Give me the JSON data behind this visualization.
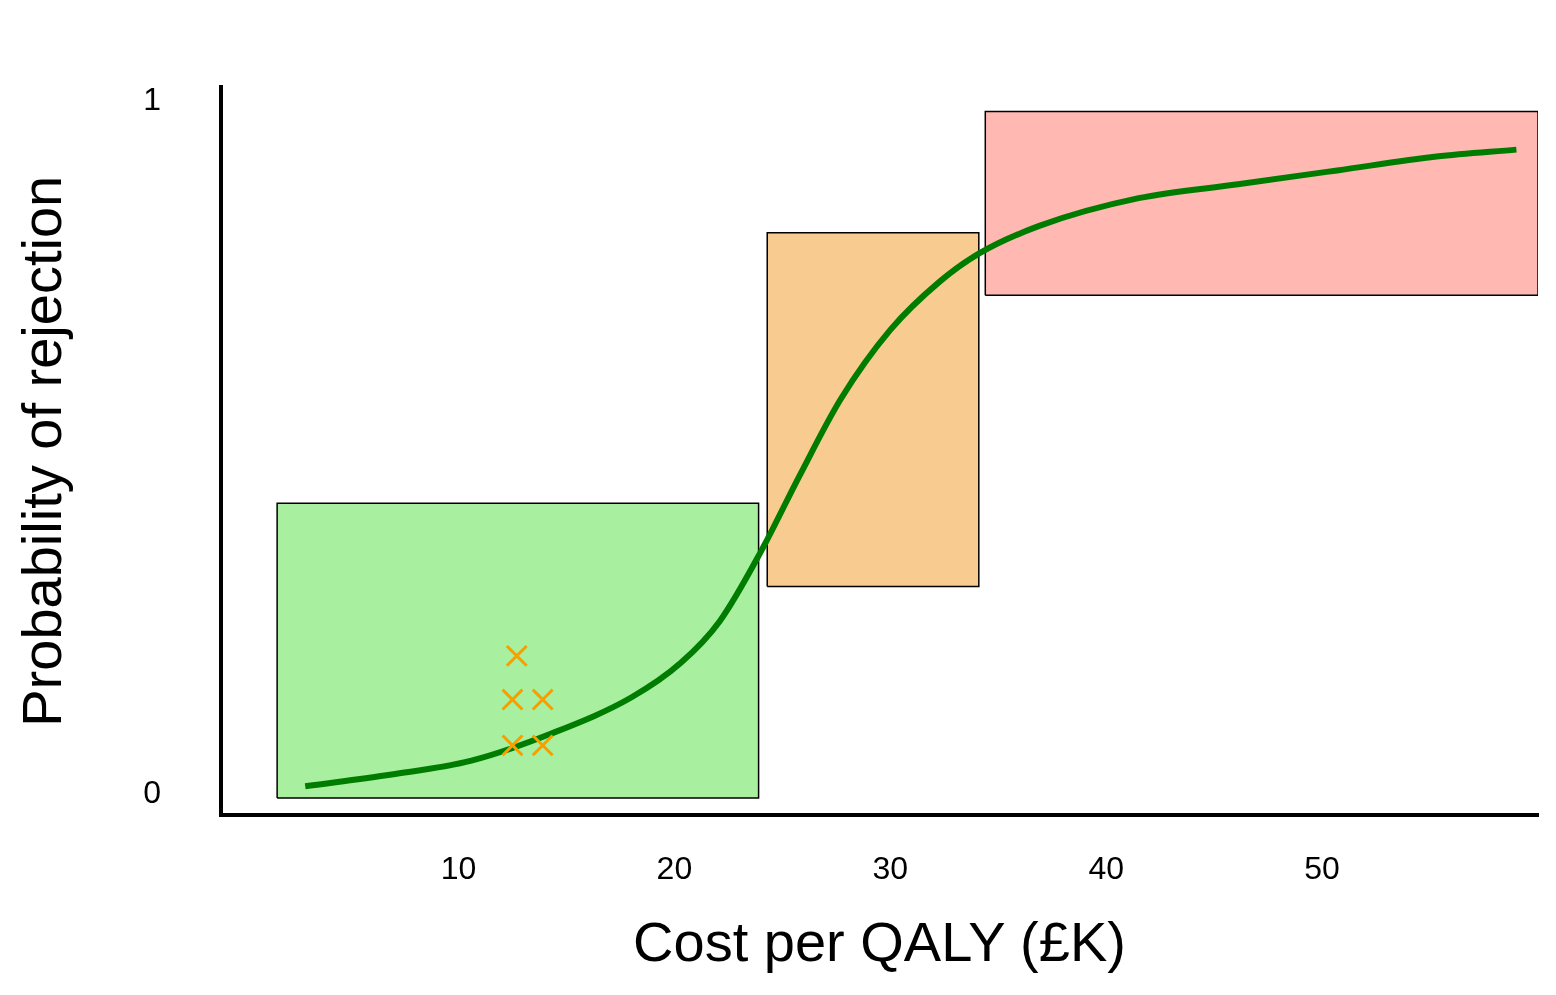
{
  "chart_data": {
    "type": "line",
    "xlabel": "Cost per QALY (£K)",
    "ylabel": "Probability of rejection",
    "xlim": [
      -1,
      60
    ],
    "ylim": [
      -0.03,
      1.02
    ],
    "xticks": [
      10,
      20,
      30,
      40,
      50
    ],
    "yticks": [
      0,
      1
    ],
    "grid": false,
    "legend": false,
    "series": [
      {
        "type": "area",
        "color": "#a8f0a0",
        "x": [
          1.6,
          1.6,
          23.9,
          23.9,
          1.6
        ],
        "values": [
          -0.005,
          0.42,
          0.42,
          -0.005,
          -0.005
        ]
      },
      {
        "type": "area",
        "color": "#f8cc90",
        "x": [
          24.3,
          24.3,
          34.1,
          34.1,
          24.3
        ],
        "values": [
          0.3,
          0.81,
          0.81,
          0.3,
          0.3
        ]
      },
      {
        "type": "area",
        "color": "#ffb8b2",
        "x": [
          34.4,
          34.4,
          60,
          60,
          34.4
        ],
        "values": [
          0.72,
          0.985,
          0.985,
          0.72,
          0.72
        ]
      },
      {
        "type": "line",
        "color": "#007d00",
        "x": [
          2.9,
          6.9,
          10.6,
          14.3,
          18.0,
          20.3,
          22.1,
          24.0,
          25.8,
          27.7,
          30.0,
          32.3,
          34.1,
          36.9,
          41.5,
          46.1,
          50.7,
          55.3,
          59.0
        ],
        "values": [
          0.012,
          0.029,
          0.049,
          0.088,
          0.14,
          0.19,
          0.25,
          0.35,
          0.46,
          0.57,
          0.67,
          0.74,
          0.78,
          0.82,
          0.86,
          0.88,
          0.9,
          0.92,
          0.93
        ]
      },
      {
        "type": "scatter",
        "color": "#f5a000",
        "marker": "cross",
        "x": [
          12.7,
          12.5,
          13.9,
          12.5,
          13.9
        ],
        "values": [
          0.2,
          0.137,
          0.137,
          0.071,
          0.071
        ]
      }
    ]
  }
}
